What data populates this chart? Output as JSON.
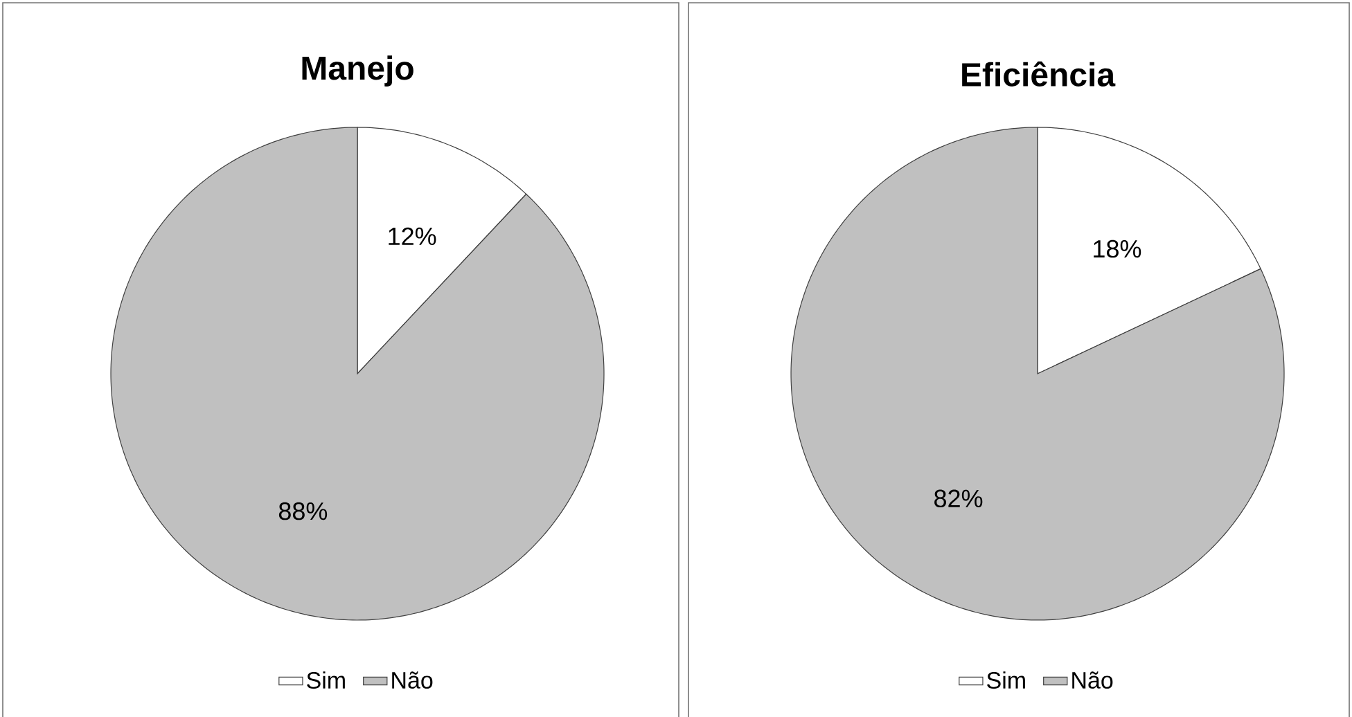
{
  "chart_data": [
    {
      "type": "pie",
      "title": "Manejo",
      "categories": [
        "Sim",
        "Não"
      ],
      "values": [
        12,
        88
      ],
      "colors": [
        "#ffffff",
        "#c0c0c0"
      ],
      "value_labels": [
        "12%",
        "88%"
      ],
      "legend": "bottom"
    },
    {
      "type": "pie",
      "title": "Eficiência",
      "categories": [
        "Sim",
        "Não"
      ],
      "values": [
        18,
        82
      ],
      "colors": [
        "#ffffff",
        "#c0c0c0"
      ],
      "value_labels": [
        "18%",
        "82%"
      ],
      "legend": "bottom"
    }
  ]
}
